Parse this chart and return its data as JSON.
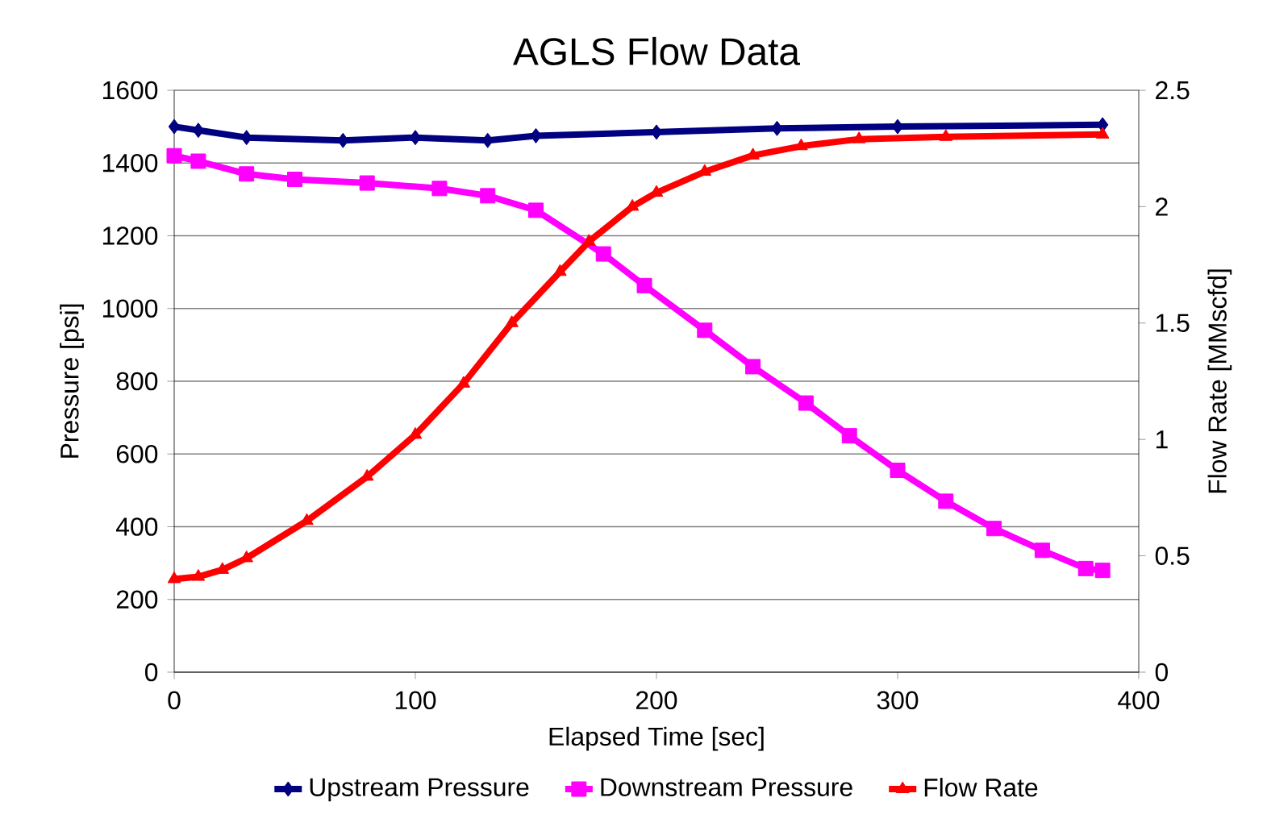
{
  "chart_data": {
    "type": "line",
    "title": "AGLS Flow Data",
    "xlabel": "Elapsed Time [sec]",
    "ylabel": "Pressure [psi]",
    "y2label": "Flow Rate [MMscfd]",
    "xlim": [
      0,
      400
    ],
    "xticks": [
      0,
      100,
      200,
      300,
      400
    ],
    "ylim": [
      0,
      1600
    ],
    "yticks": [
      0,
      200,
      400,
      600,
      800,
      1000,
      1200,
      1400,
      1600
    ],
    "y2lim": [
      0,
      2.5
    ],
    "y2ticks": [
      0,
      0.5,
      1,
      1.5,
      2,
      2.5
    ],
    "grid": "y",
    "legend": "bottom",
    "line_style": "solid",
    "series": [
      {
        "name": "Upstream Pressure",
        "color": "#000080",
        "marker": "diamond",
        "x": [
          0,
          10,
          30,
          70,
          100,
          130,
          150,
          200,
          250,
          300,
          385
        ],
        "values": [
          1500,
          1490,
          1470,
          1462,
          1470,
          1462,
          1475,
          1485,
          1495,
          1500,
          1505
        ]
      },
      {
        "name": "Downstream Pressure",
        "color": "#ff00ff",
        "marker": "square",
        "x": [
          0,
          10,
          30,
          50,
          80,
          110,
          130,
          150,
          178,
          195,
          220,
          240,
          262,
          280,
          300,
          320,
          340,
          360,
          378,
          385
        ],
        "values": [
          1420,
          1405,
          1370,
          1355,
          1345,
          1330,
          1310,
          1270,
          1150,
          1063,
          940,
          840,
          740,
          650,
          555,
          470,
          395,
          335,
          285,
          280
        ]
      },
      {
        "name": "Flow Rate",
        "color": "#ff0000",
        "marker": "triangle",
        "axis": "y2",
        "x": [
          0,
          10,
          20,
          30,
          55,
          80,
          100,
          120,
          140,
          160,
          172,
          190,
          200,
          220,
          240,
          260,
          284,
          320,
          385
        ],
        "values": [
          0.4,
          0.41,
          0.44,
          0.49,
          0.65,
          0.84,
          1.02,
          1.24,
          1.5,
          1.72,
          1.85,
          2.0,
          2.06,
          2.15,
          2.22,
          2.26,
          2.29,
          2.3,
          2.31
        ]
      }
    ]
  }
}
